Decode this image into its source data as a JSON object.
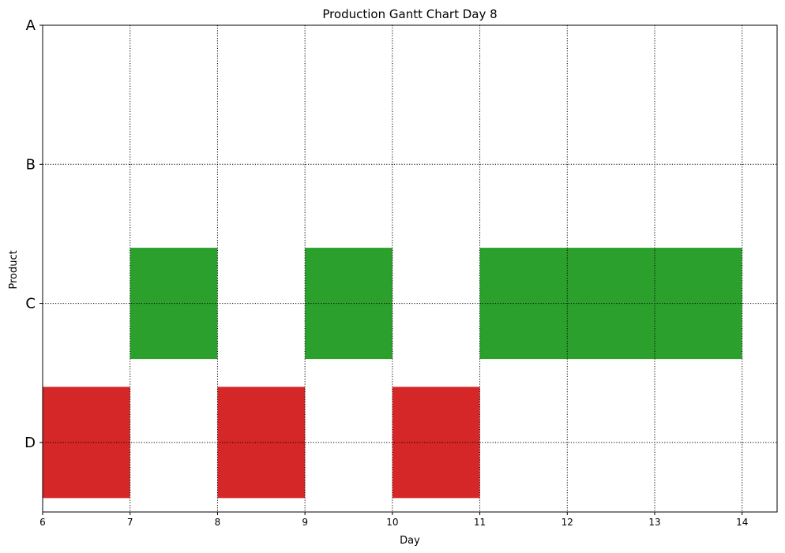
{
  "chart_data": {
    "type": "gantt",
    "title": "Production Gantt Chart Day 8",
    "xlabel": "Day",
    "ylabel": "Product",
    "xlim": [
      6,
      14.4
    ],
    "x_ticks": [
      6,
      7,
      8,
      9,
      10,
      11,
      12,
      13,
      14
    ],
    "categories": [
      "A",
      "B",
      "C",
      "D"
    ],
    "grid": true,
    "colors": {
      "C": "#2ca02c",
      "D": "#d62728"
    },
    "tasks": [
      {
        "product": "C",
        "start": 7,
        "end": 8
      },
      {
        "product": "C",
        "start": 9,
        "end": 10
      },
      {
        "product": "C",
        "start": 11,
        "end": 14
      },
      {
        "product": "D",
        "start": 6,
        "end": 7
      },
      {
        "product": "D",
        "start": 8,
        "end": 9
      },
      {
        "product": "D",
        "start": 10,
        "end": 11
      }
    ]
  }
}
